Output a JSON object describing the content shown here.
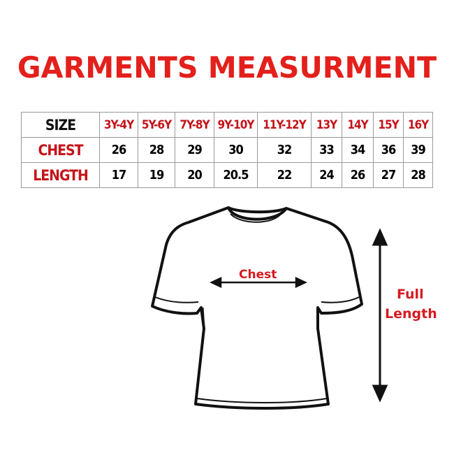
{
  "title": "GARMENTS MEASURMENT",
  "table": {
    "row_labels": {
      "size": "SIZE",
      "chest": "CHEST",
      "length": "LENGTH"
    },
    "sizes": [
      "3Y-4Y",
      "5Y-6Y",
      "7Y-8Y",
      "9Y-10Y",
      "11Y-12Y",
      "13Y",
      "14Y",
      "15Y",
      "16Y"
    ],
    "chest": [
      "26",
      "28",
      "29",
      "30",
      "32",
      "33",
      "34",
      "36",
      "39"
    ],
    "length": [
      "17",
      "19",
      "20",
      "20.5",
      "22",
      "24",
      "26",
      "27",
      "28"
    ]
  },
  "diagram": {
    "chest_label": "Chest",
    "full_length_label_line1": "Full",
    "full_length_label_line2": "Length"
  },
  "colors": {
    "title": "#e3201b",
    "label": "#c4141a"
  }
}
